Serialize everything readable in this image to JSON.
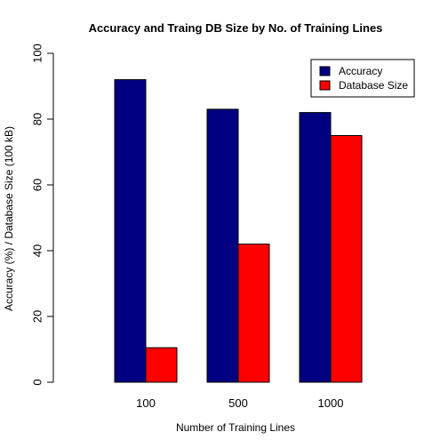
{
  "chart_data": {
    "type": "bar",
    "title": "Accuracy and Traing DB Size by No. of Training Lines",
    "xlabel": "Number of Training Lines",
    "ylabel": "Accuracy (%) / Database Size (100 kB)",
    "categories": [
      "100",
      "500",
      "1000"
    ],
    "series": [
      {
        "name": "Accuracy",
        "values": [
          92,
          83,
          82
        ],
        "color": "#000080"
      },
      {
        "name": "Database Size",
        "values": [
          10.5,
          42,
          75
        ],
        "color": "#ff0000"
      }
    ],
    "ylim": [
      0,
      100
    ],
    "yticks": [
      "0",
      "20",
      "40",
      "60",
      "80",
      "100"
    ],
    "grid": false,
    "legend_position": "top-right"
  }
}
